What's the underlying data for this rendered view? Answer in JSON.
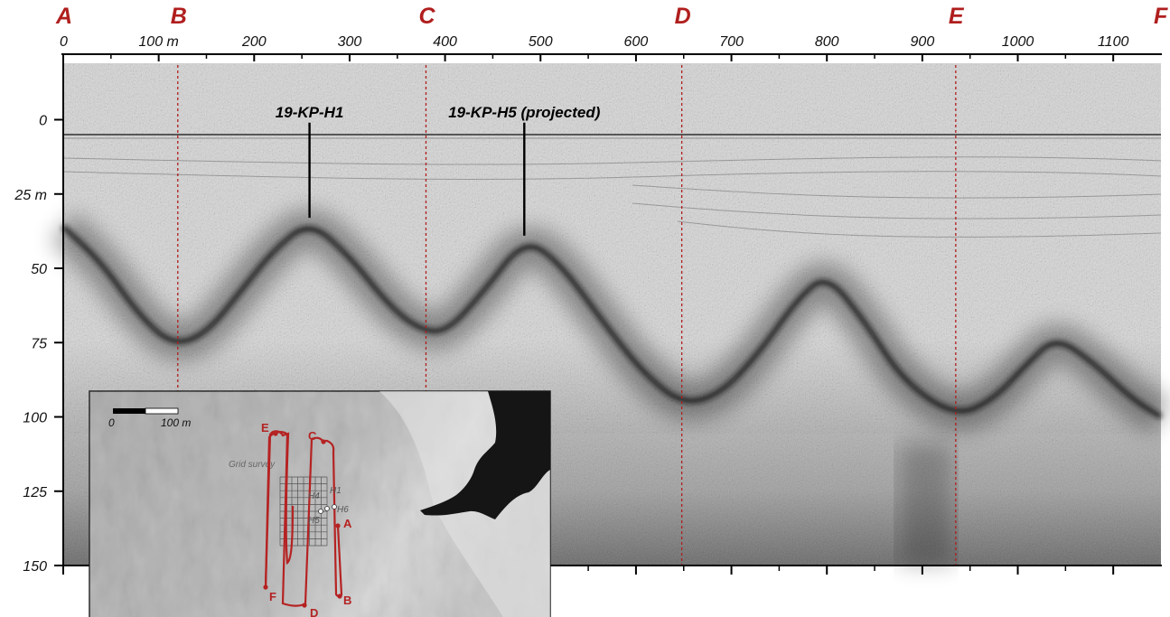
{
  "colors": {
    "section_red": "#b01e1e",
    "track_red": "#b52222",
    "text": "#111111",
    "reflector": "#141414"
  },
  "sections": [
    {
      "letter": "A",
      "x": 0
    },
    {
      "letter": "B",
      "x": 120
    },
    {
      "letter": "C",
      "x": 380
    },
    {
      "letter": "D",
      "x": 648
    },
    {
      "letter": "E",
      "x": 935
    },
    {
      "letter": "F",
      "x": 1150
    }
  ],
  "x_axis": {
    "ticks": [
      0,
      100,
      200,
      300,
      400,
      500,
      600,
      700,
      800,
      900,
      1000,
      1100
    ],
    "labels": [
      "0",
      "100 m",
      "200",
      "300",
      "400",
      "500",
      "600",
      "700",
      "800",
      "900",
      "1000",
      "1100"
    ],
    "range": [
      0,
      1150
    ]
  },
  "y_axis": {
    "ticks": [
      0,
      25,
      50,
      75,
      100,
      125,
      150
    ],
    "labels": [
      "0",
      "25 m",
      "50",
      "75",
      "100",
      "125",
      "150"
    ],
    "range": [
      -19,
      150
    ],
    "inverted": true
  },
  "sites": [
    {
      "label": "19-KP-H1",
      "x": 258,
      "depth_top": 1,
      "depth_bottom": 33
    },
    {
      "label": "19-KP-H5 (projected)",
      "x": 483,
      "depth_top": 1,
      "depth_bottom": 39
    }
  ],
  "reflector": {
    "points": [
      [
        0,
        36
      ],
      [
        40,
        48
      ],
      [
        80,
        66
      ],
      [
        115,
        76
      ],
      [
        150,
        72
      ],
      [
        190,
        56
      ],
      [
        220,
        44
      ],
      [
        258,
        34
      ],
      [
        300,
        46
      ],
      [
        340,
        62
      ],
      [
        370,
        70
      ],
      [
        400,
        72
      ],
      [
        440,
        58
      ],
      [
        483,
        40
      ],
      [
        520,
        48
      ],
      [
        570,
        70
      ],
      [
        610,
        86
      ],
      [
        650,
        96
      ],
      [
        690,
        92
      ],
      [
        730,
        78
      ],
      [
        770,
        60
      ],
      [
        800,
        52
      ],
      [
        840,
        68
      ],
      [
        880,
        88
      ],
      [
        935,
        100
      ],
      [
        975,
        94
      ],
      [
        1010,
        82
      ],
      [
        1040,
        73
      ],
      [
        1080,
        82
      ],
      [
        1120,
        94
      ],
      [
        1150,
        100
      ]
    ]
  },
  "inset": {
    "scalebar": {
      "zero": "0",
      "end": "100 m"
    },
    "grid_label": "Grid survey",
    "hole_labels": {
      "h1": "H1",
      "h4": "H4",
      "h5": "H5",
      "h6": "H6"
    },
    "track_labels": {
      "a": "A",
      "b": "B",
      "c": "C",
      "d": "D",
      "e": "E",
      "f": "F"
    }
  }
}
